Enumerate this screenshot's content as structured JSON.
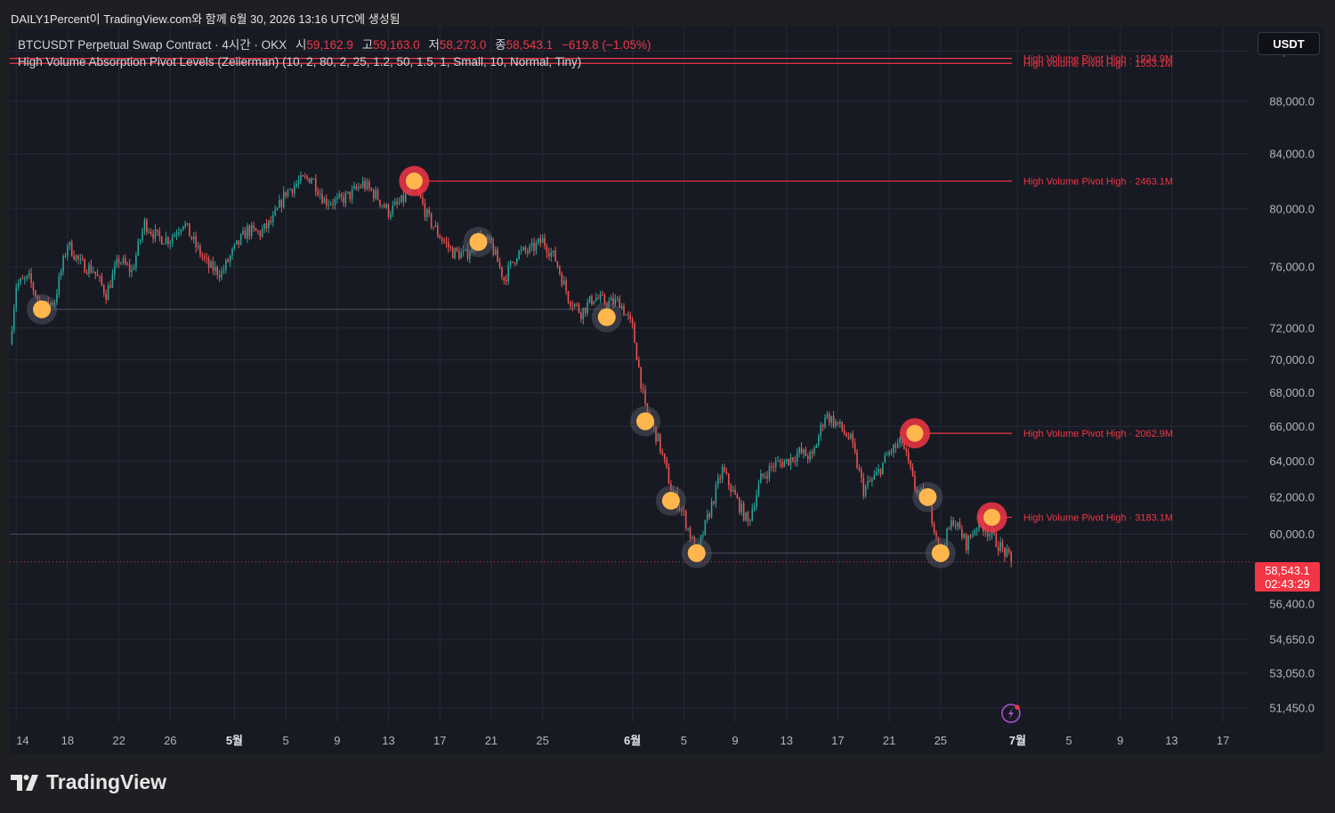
{
  "caption": "DAILY1Percent이 TradingView.com와 함께 6월 30, 2026 13:16 UTC에 생성됨",
  "symbol": {
    "title": "BTCUSDT Perpetual Swap Contract · 4시간 · OKX",
    "open_label": "시",
    "open": "59,162.9",
    "high_label": "고",
    "high": "59,163.0",
    "low_label": "저",
    "low": "58,273.0",
    "close_label": "종",
    "close": "58,543.1",
    "change": "−619.8 (−1.05%)"
  },
  "indicator": "High Volume Absorption Pivot Levels (Zeiierman) (10, 2, 80, 2, 25, 1.2, 50, 1.5, 1, Small, 10, Normal, Tiny)",
  "currency_button": "USDT",
  "last_price": {
    "value": "58,543.1",
    "countdown": "02:43:29"
  },
  "brand": "TradingView",
  "colors": {
    "background": "#171a23",
    "up": "#26a69a",
    "down": "#ef5350",
    "pivot_high": "#f23645",
    "pivot_low": "#ffb74d",
    "grid": "#252a36"
  },
  "chart_data": {
    "type": "candlestick",
    "title": "BTCUSDT Perpetual Swap Contract · 4시간 · OKX",
    "y_scale": "log",
    "ylim": [
      50800,
      94000
    ],
    "y_ticks": [
      92000,
      88000,
      84000,
      80000,
      76000,
      72000,
      70000,
      68000,
      66000,
      64000,
      62000,
      60000,
      56400,
      54650,
      53050,
      51450
    ],
    "y_tick_labels": [
      "92,000.0",
      "88,000.0",
      "84,000.0",
      "80,000.0",
      "76,000.0",
      "72,000.0",
      "70,000.0",
      "68,000.0",
      "66,000.0",
      "64,000.0",
      "62,000.0",
      "60,000.0",
      "56,400.0",
      "54,650.0",
      "53,050.0",
      "51,450.0"
    ],
    "xlim": [
      "2026-04-13T12:00",
      "2026-07-19T00:00"
    ],
    "x_ticks": [
      "2026-04-14",
      "2026-04-18",
      "2026-04-22",
      "2026-04-26",
      "2026-05-01",
      "2026-05-05",
      "2026-05-09",
      "2026-05-13",
      "2026-05-17",
      "2026-05-21",
      "2026-05-25",
      "2026-06-01",
      "2026-06-05",
      "2026-06-09",
      "2026-06-13",
      "2026-06-17",
      "2026-06-21",
      "2026-06-25",
      "2026-07-01",
      "2026-07-05",
      "2026-07-09",
      "2026-07-13",
      "2026-07-17"
    ],
    "x_tick_labels": [
      "14",
      "18",
      "22",
      "26",
      "5월",
      "5",
      "9",
      "13",
      "17",
      "21",
      "25",
      "6월",
      "5",
      "9",
      "13",
      "17",
      "21",
      "25",
      "7월",
      "5",
      "9",
      "13",
      "17"
    ],
    "path": [
      [
        "2026-04-13T12:00",
        71000
      ],
      [
        "2026-04-14",
        74800
      ],
      [
        "2026-04-15",
        75200
      ],
      [
        "2026-04-16",
        73200
      ],
      [
        "2026-04-17",
        73800
      ],
      [
        "2026-04-18",
        77600
      ],
      [
        "2026-04-19",
        76200
      ],
      [
        "2026-04-20",
        75800
      ],
      [
        "2026-04-21",
        74200
      ],
      [
        "2026-04-22",
        76500
      ],
      [
        "2026-04-23",
        75700
      ],
      [
        "2026-04-24",
        79000
      ],
      [
        "2026-04-25",
        78000
      ],
      [
        "2026-04-26",
        77900
      ],
      [
        "2026-04-27",
        79100
      ],
      [
        "2026-04-28",
        77400
      ],
      [
        "2026-04-29",
        76000
      ],
      [
        "2026-04-30",
        75600
      ],
      [
        "2026-05-01",
        77200
      ],
      [
        "2026-05-02",
        78500
      ],
      [
        "2026-05-03",
        78300
      ],
      [
        "2026-05-04",
        79200
      ],
      [
        "2026-05-05",
        81200
      ],
      [
        "2026-05-06",
        81900
      ],
      [
        "2026-05-07",
        82300
      ],
      [
        "2026-05-08",
        80600
      ],
      [
        "2026-05-09",
        80500
      ],
      [
        "2026-05-10",
        81000
      ],
      [
        "2026-05-11",
        81800
      ],
      [
        "2026-05-12",
        81000
      ],
      [
        "2026-05-13",
        79800
      ],
      [
        "2026-05-14",
        80500
      ],
      [
        "2026-05-15",
        81800
      ],
      [
        "2026-05-16",
        79500
      ],
      [
        "2026-05-17",
        78100
      ],
      [
        "2026-05-18",
        77000
      ],
      [
        "2026-05-19",
        76800
      ],
      [
        "2026-05-20",
        77900
      ],
      [
        "2026-05-21",
        77500
      ],
      [
        "2026-05-22",
        75200
      ],
      [
        "2026-05-23",
        76900
      ],
      [
        "2026-05-24",
        77100
      ],
      [
        "2026-05-25",
        77800
      ],
      [
        "2026-05-26",
        76500
      ],
      [
        "2026-05-27",
        74000
      ],
      [
        "2026-05-28",
        73000
      ],
      [
        "2026-05-29",
        74000
      ],
      [
        "2026-05-30",
        73600
      ],
      [
        "2026-05-31",
        73700
      ],
      [
        "2026-06-01",
        72000
      ],
      [
        "2026-06-02",
        67000
      ],
      [
        "2026-06-03",
        65200
      ],
      [
        "2026-06-04",
        62500
      ],
      [
        "2026-06-05",
        61000
      ],
      [
        "2026-06-06",
        58900
      ],
      [
        "2026-06-07",
        61200
      ],
      [
        "2026-06-08",
        63500
      ],
      [
        "2026-06-09",
        62000
      ],
      [
        "2026-06-10",
        60600
      ],
      [
        "2026-06-11",
        63000
      ],
      [
        "2026-06-12",
        63800
      ],
      [
        "2026-06-13",
        64000
      ],
      [
        "2026-06-14",
        64500
      ],
      [
        "2026-06-15",
        64200
      ],
      [
        "2026-06-16",
        66700
      ],
      [
        "2026-06-17",
        66100
      ],
      [
        "2026-06-18",
        65200
      ],
      [
        "2026-06-19",
        62400
      ],
      [
        "2026-06-20",
        63200
      ],
      [
        "2026-06-21",
        64500
      ],
      [
        "2026-06-22",
        65100
      ],
      [
        "2026-06-23",
        62500
      ],
      [
        "2026-06-24",
        61800
      ],
      [
        "2026-06-25",
        59100
      ],
      [
        "2026-06-26",
        60800
      ],
      [
        "2026-06-27",
        59500
      ],
      [
        "2026-06-28",
        60700
      ],
      [
        "2026-06-29",
        59900
      ],
      [
        "2026-06-30T13:16",
        58543.1
      ]
    ],
    "pivot_high_levels": [
      {
        "label": "High Volume Pivot High · 1934.9M",
        "price": 91400,
        "start": "2026-04-13T12:00"
      },
      {
        "label": "High Volume Pivot High · 1553.1M",
        "price": 91000,
        "start": "2026-04-13T12:00"
      },
      {
        "label": "High Volume Pivot High · 2463.1M",
        "price": 82000,
        "start": "2026-05-15"
      },
      {
        "label": "High Volume Pivot High · 2062.9M",
        "price": 65600,
        "start": "2026-06-23"
      },
      {
        "label": "High Volume Pivot High · 3183.1M",
        "price": 60900,
        "start": "2026-06-29"
      }
    ],
    "pivot_low_levels": [
      {
        "price": 73200,
        "start": "2026-04-16",
        "end": "2026-05-30"
      },
      {
        "price": 60000,
        "start": "2026-04-13T12:00",
        "end": "2026-06-05"
      },
      {
        "price": 59000,
        "start": "2026-06-06",
        "end": "2026-06-25"
      }
    ],
    "pivot_high_markers": [
      {
        "time": "2026-05-15",
        "price": 82000
      },
      {
        "time": "2026-06-23",
        "price": 65600
      },
      {
        "time": "2026-06-29",
        "price": 60900
      }
    ],
    "pivot_low_markers": [
      {
        "time": "2026-04-16",
        "price": 73200
      },
      {
        "time": "2026-05-20",
        "price": 77700
      },
      {
        "time": "2026-05-30",
        "price": 72700
      },
      {
        "time": "2026-06-02",
        "price": 66300
      },
      {
        "time": "2026-06-04",
        "price": 61800
      },
      {
        "time": "2026-06-06",
        "price": 59000
      },
      {
        "time": "2026-06-24",
        "price": 62000
      },
      {
        "time": "2026-06-25",
        "price": 59000
      }
    ],
    "last_price": 58543.1,
    "last_time": "2026-06-30T13:16",
    "countdown": "02:43:29"
  }
}
